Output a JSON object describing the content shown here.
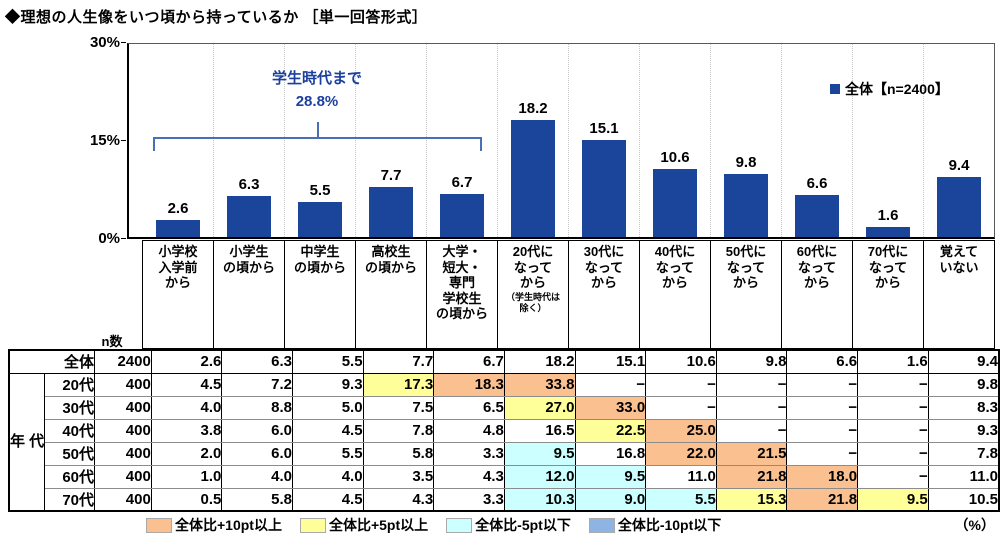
{
  "title": "◆理想の人生像をいつ頃から持っているか ［単一回答形式］",
  "colors": {
    "bar": "#1B449B",
    "annotation_text": "#1B3F9E",
    "bracket": "#4A6FB5",
    "highlight_orange": "#FAC090",
    "highlight_yellow": "#FFFF99",
    "highlight_cyan": "#CCFFFF",
    "highlight_blue": "#8DB4E2"
  },
  "chart_data": {
    "type": "bar",
    "title": "理想の人生像をいつ頃から持っているか",
    "subtitle": "単一回答形式",
    "unit": "%",
    "ylim": [
      0,
      30
    ],
    "yticks": [
      30,
      15,
      0
    ],
    "grid": "vertical category separators, dotted",
    "legend": "全体【n=2400】",
    "legend_position": "top-right",
    "annotation": {
      "text": "学生時代まで",
      "value": 28.8,
      "spans_categories": "1-5"
    },
    "categories": [
      "小学校入学前から",
      "小学生の頃から",
      "中学生の頃から",
      "高校生の頃から",
      "大学・短大・専門学校生の頃から",
      "20代になってから（学生時代は除く）",
      "30代になってから",
      "40代になってから",
      "50代になってから",
      "60代になってから",
      "70代になってから",
      "覚えていない"
    ],
    "series_name": "全体",
    "n": 2400,
    "values": [
      2.6,
      6.3,
      5.5,
      7.7,
      6.7,
      18.2,
      15.1,
      10.6,
      9.8,
      6.6,
      1.6,
      9.4
    ]
  },
  "chart_labels": {
    "legend_label": "全体【n=2400】",
    "annotation_line1": "学生時代まで",
    "annotation_line2": "28.8%"
  },
  "table": {
    "n_header": "n数",
    "group_label": "年代",
    "column_labels": [
      {
        "label": "小学校\n入学前\nから"
      },
      {
        "label": "小学生\nの頃から"
      },
      {
        "label": "中学生\nの頃から"
      },
      {
        "label": "高校生\nの頃から"
      },
      {
        "label": "大学・\n短大・\n専門\n学校生\nの頃から"
      },
      {
        "label": "20代に\nなって\nから",
        "sub": "（学生時代は\n除く）"
      },
      {
        "label": "30代に\nなって\nから"
      },
      {
        "label": "40代に\nなって\nから"
      },
      {
        "label": "50代に\nなって\nから"
      },
      {
        "label": "60代に\nなって\nから"
      },
      {
        "label": "70代に\nなって\nから"
      },
      {
        "label": "覚えて\nいない"
      }
    ],
    "rows": [
      {
        "label": "全体",
        "n": "2400",
        "values": [
          "2.6",
          "6.3",
          "5.5",
          "7.7",
          "6.7",
          "18.2",
          "15.1",
          "10.6",
          "9.8",
          "6.6",
          "1.6",
          "9.4"
        ],
        "highlights": [
          "",
          "",
          "",
          "",
          "",
          "",
          "",
          "",
          "",
          "",
          "",
          ""
        ]
      },
      {
        "label": "20代",
        "n": "400",
        "values": [
          "4.5",
          "7.2",
          "9.3",
          "17.3",
          "18.3",
          "33.8",
          "−",
          "−",
          "−",
          "−",
          "−",
          "9.8"
        ],
        "highlights": [
          "",
          "",
          "",
          "yellow",
          "orange",
          "orange",
          "",
          "",
          "",
          "",
          "",
          ""
        ]
      },
      {
        "label": "30代",
        "n": "400",
        "values": [
          "4.0",
          "8.8",
          "5.0",
          "7.5",
          "6.5",
          "27.0",
          "33.0",
          "−",
          "−",
          "−",
          "−",
          "8.3"
        ],
        "highlights": [
          "",
          "",
          "",
          "",
          "",
          "yellow",
          "orange",
          "",
          "",
          "",
          "",
          ""
        ]
      },
      {
        "label": "40代",
        "n": "400",
        "values": [
          "3.8",
          "6.0",
          "4.5",
          "7.8",
          "4.8",
          "16.5",
          "22.5",
          "25.0",
          "−",
          "−",
          "−",
          "9.3"
        ],
        "highlights": [
          "",
          "",
          "",
          "",
          "",
          "",
          "yellow",
          "orange",
          "",
          "",
          "",
          ""
        ]
      },
      {
        "label": "50代",
        "n": "400",
        "values": [
          "2.0",
          "6.0",
          "5.5",
          "5.8",
          "3.3",
          "9.5",
          "16.8",
          "22.0",
          "21.5",
          "−",
          "−",
          "7.8"
        ],
        "highlights": [
          "",
          "",
          "",
          "",
          "",
          "cyan",
          "",
          "orange",
          "orange",
          "",
          "",
          ""
        ]
      },
      {
        "label": "60代",
        "n": "400",
        "values": [
          "1.0",
          "4.0",
          "4.0",
          "3.5",
          "4.3",
          "12.0",
          "9.5",
          "11.0",
          "21.8",
          "18.0",
          "−",
          "11.0"
        ],
        "highlights": [
          "",
          "",
          "",
          "",
          "",
          "cyan",
          "cyan",
          "",
          "orange",
          "orange",
          "",
          ""
        ]
      },
      {
        "label": "70代",
        "n": "400",
        "values": [
          "0.5",
          "5.8",
          "4.5",
          "4.3",
          "3.3",
          "10.3",
          "9.0",
          "5.5",
          "15.3",
          "21.8",
          "9.5",
          "10.5"
        ],
        "highlights": [
          "",
          "",
          "",
          "",
          "",
          "cyan",
          "cyan",
          "cyan",
          "yellow",
          "orange",
          "yellow",
          ""
        ]
      }
    ]
  },
  "footer": {
    "legend": [
      {
        "color": "orange",
        "label": "全体比+10pt以上"
      },
      {
        "color": "yellow",
        "label": "全体比+5pt以上"
      },
      {
        "color": "cyan",
        "label": "全体比-5pt以下"
      },
      {
        "color": "blue",
        "label": "全体比-10pt以下"
      }
    ],
    "unit_note": "（%）"
  }
}
